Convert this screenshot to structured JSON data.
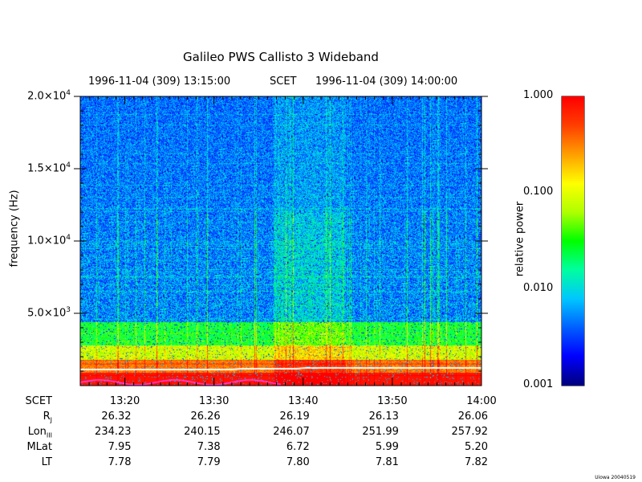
{
  "chart_data": {
    "type": "heatmap",
    "title": "Galileo PWS Callisto 3 Wideband",
    "time_header": {
      "start": "1996-11-04 (309) 13:15:00",
      "label": "SCET",
      "end": "1996-11-04 (309) 14:00:00"
    },
    "ylabel": "frequency (Hz)",
    "ylim": [
      0,
      20000
    ],
    "yticks": [
      {
        "value": 5000,
        "mantissa": "5.0",
        "exp": "3"
      },
      {
        "value": 10000,
        "mantissa": "1.0",
        "exp": "4"
      },
      {
        "value": 15000,
        "mantissa": "1.5",
        "exp": "4"
      },
      {
        "value": 20000,
        "mantissa": "2.0",
        "exp": "4"
      }
    ],
    "x_range_minutes": [
      15,
      60
    ],
    "xticks_minutes": [
      20,
      30,
      40,
      50,
      60
    ],
    "colorbar": {
      "label": "relative power",
      "scale": "log",
      "range": [
        0.001,
        1.0
      ],
      "ticks": [
        "1.000",
        "0.100",
        "0.010",
        "0.001"
      ],
      "colors": [
        "#00007f",
        "#0000ff",
        "#0060ff",
        "#00c8ff",
        "#00ffa0",
        "#00ff00",
        "#b0ff00",
        "#ffff00",
        "#ffa000",
        "#ff4000",
        "#ff0000"
      ]
    }
  },
  "ephemeris": {
    "rows": [
      {
        "label": "SCET",
        "sub": "",
        "values": [
          "13:20",
          "13:30",
          "13:40",
          "13:50",
          "14:00"
        ]
      },
      {
        "label": "R",
        "sub": "J",
        "values": [
          "26.32",
          "26.26",
          "26.19",
          "26.13",
          "26.06"
        ]
      },
      {
        "label": "Lon",
        "sub": "III",
        "values": [
          "234.23",
          "240.15",
          "246.07",
          "251.99",
          "257.92"
        ]
      },
      {
        "label": "MLat",
        "sub": "",
        "values": [
          "7.95",
          "7.38",
          "6.72",
          "5.99",
          "5.20"
        ]
      },
      {
        "label": "LT",
        "sub": "",
        "values": [
          "7.78",
          "7.79",
          "7.80",
          "7.81",
          "7.82"
        ]
      }
    ]
  },
  "credit": "Uiowa 20040519"
}
